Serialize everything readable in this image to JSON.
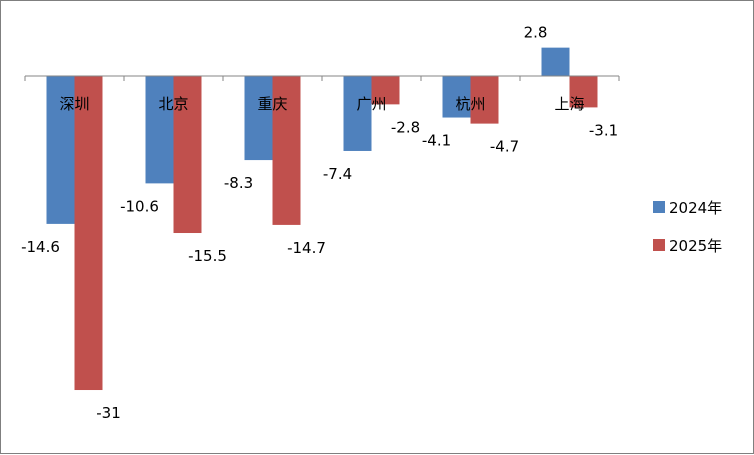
{
  "chart_data": {
    "type": "bar",
    "categories": [
      "深圳",
      "北京",
      "重庆",
      "广州",
      "杭州",
      "上海"
    ],
    "series": [
      {
        "name": "2024年",
        "values": [
          -14.6,
          -10.6,
          -8.3,
          -7.4,
          -4.1,
          2.8
        ],
        "color": "#4f81bd"
      },
      {
        "name": "2025年",
        "values": [
          -31,
          -15.5,
          -14.7,
          -2.8,
          -4.7,
          -3.1
        ],
        "color": "#c0504d"
      }
    ],
    "value_labels": [
      [
        "-14.6",
        "-10.6",
        "-8.3",
        "-7.4",
        "-4.1",
        "2.8"
      ],
      [
        "-31",
        "-15.5",
        "-14.7",
        "-2.8",
        "-4.7",
        "-3.1"
      ]
    ],
    "title": "",
    "xlabel": "",
    "ylabel": "",
    "ylim": [
      -31,
      2.8
    ],
    "grid": false,
    "legend": "right"
  }
}
